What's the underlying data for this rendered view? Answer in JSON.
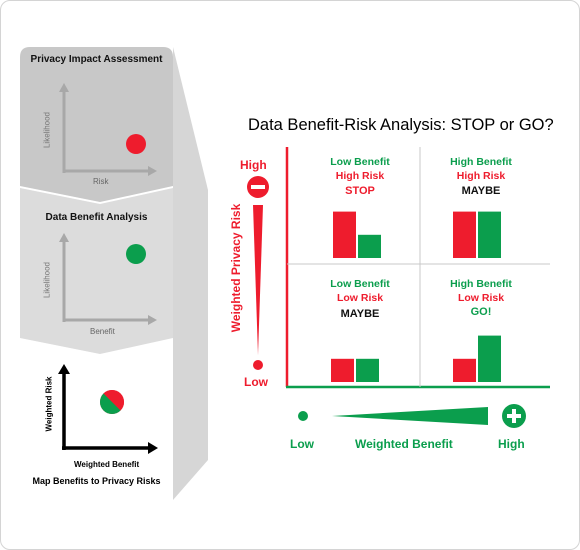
{
  "colors": {
    "red": "#ee1c2d",
    "green": "#0b9e4d",
    "panel_gray": "#c8c8c8",
    "panel_light": "#dcdcdc",
    "axis_gray": "#a8a8a8"
  },
  "left_panel": {
    "step1": {
      "title": "Privacy Impact Assessment",
      "y_label": "Likelihood",
      "x_label": "Risk"
    },
    "step2": {
      "title": "Data Benefit Analysis",
      "y_label": "Likelihood",
      "x_label": "Benefit"
    },
    "step3": {
      "y_label": "Weighted Risk",
      "x_label": "Weighted Benefit",
      "caption": "Map Benefits to Privacy Risks"
    }
  },
  "main": {
    "title": "Data Benefit-Risk Analysis: STOP or GO?",
    "y_axis": {
      "label": "Weighted Privacy Risk",
      "high": "High",
      "low": "Low",
      "high_icon": "minus-icon"
    },
    "x_axis": {
      "label": "Weighted Benefit",
      "low": "Low",
      "high": "High",
      "high_icon": "plus-icon"
    },
    "quadrants": [
      {
        "benefit": "Low Benefit",
        "risk": "High Risk",
        "verdict": "STOP",
        "risk_bar": 0.8,
        "benefit_bar": 0.4
      },
      {
        "benefit": "High Benefit",
        "risk": "High Risk",
        "verdict": "MAYBE",
        "risk_bar": 0.8,
        "benefit_bar": 0.8
      },
      {
        "benefit": "Low Benefit",
        "risk": "Low Risk",
        "verdict": "MAYBE",
        "risk_bar": 0.4,
        "benefit_bar": 0.4
      },
      {
        "benefit": "High Benefit",
        "risk": "Low Risk",
        "verdict": "GO!",
        "risk_bar": 0.4,
        "benefit_bar": 0.8
      }
    ]
  }
}
